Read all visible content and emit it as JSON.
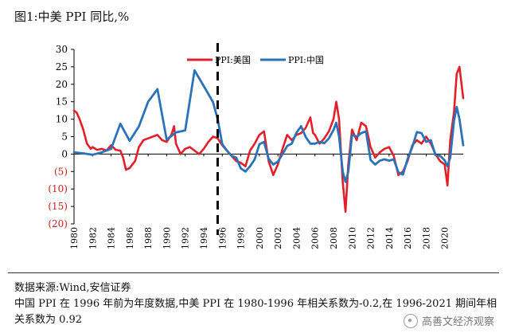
{
  "figure": {
    "title": "图1:中美 PPI 同比,%"
  },
  "source": "数据来源:Wind,安信证券",
  "note": "中国 PPI 在 1996 年前为年度数据,中美 PPI 在 1980-1996 年相关系数为-0.2,在 1996-2021 期间年相关系数为 0.92",
  "watermark": {
    "text": "高善文经济观察",
    "icon": "wechat-channel-icon"
  },
  "colors": {
    "us": "#e3202a",
    "china": "#2b73b8",
    "negative_tick": "#c81e1e",
    "divider": "#000000"
  },
  "chart_data": {
    "type": "line",
    "title": "",
    "xlabel": "",
    "ylabel": "",
    "xlim": [
      1980,
      2022
    ],
    "ylim": [
      -20,
      30
    ],
    "y_ticks": [
      30,
      25,
      20,
      15,
      10,
      5,
      0,
      -5,
      -10,
      -15,
      -20
    ],
    "y_tick_labels": [
      "30",
      "25",
      "20",
      "15",
      "10",
      "5",
      "0",
      "(5)",
      "(10)",
      "(15)",
      "(20)"
    ],
    "x_ticks": [
      1980,
      1982,
      1984,
      1986,
      1988,
      1990,
      1992,
      1994,
      1996,
      1998,
      2000,
      2002,
      2004,
      2006,
      2008,
      2010,
      2012,
      2014,
      2016,
      2018,
      2020
    ],
    "x_tick_labels": [
      "1980",
      "1982",
      "1984",
      "1986",
      "1988",
      "1990",
      "1992",
      "1994",
      "1996",
      "1998",
      "2000",
      "2002",
      "2004",
      "2006",
      "2008",
      "2010",
      "2012",
      "2014",
      "2016",
      "2018",
      "2020"
    ],
    "grid": false,
    "legend": "top-center",
    "divider_year": 1995.5,
    "series": [
      {
        "name": "PPI:美国",
        "color": "#e3202a",
        "x": [
          1980,
          1980.3,
          1980.6,
          1981,
          1981.4,
          1981.8,
          1982,
          1982.5,
          1983,
          1983.5,
          1984,
          1984.5,
          1985,
          1985.3,
          1985.6,
          1986,
          1986.3,
          1986.6,
          1987,
          1987.5,
          1988,
          1988.5,
          1989,
          1989.5,
          1990,
          1990.5,
          1990.8,
          1991,
          1991.5,
          1992,
          1992.5,
          1993,
          1993.5,
          1994,
          1994.5,
          1995,
          1995.5,
          1996,
          1996.5,
          1997,
          1997.5,
          1998,
          1998.5,
          1999,
          1999.5,
          2000,
          2000.5,
          2001,
          2001.5,
          2002,
          2002.5,
          2003,
          2003.5,
          2004,
          2004.5,
          2005,
          2005.5,
          2005.8,
          2006,
          2006.5,
          2007,
          2007.5,
          2008,
          2008.3,
          2008.6,
          2009,
          2009.3,
          2009.6,
          2010,
          2010.5,
          2011,
          2011.5,
          2012,
          2012.5,
          2013,
          2013.5,
          2014,
          2014.5,
          2015,
          2015.5,
          2016,
          2016.5,
          2017,
          2017.5,
          2018,
          2018.5,
          2019,
          2019.5,
          2020,
          2020.3,
          2020.6,
          2021,
          2021.3,
          2021.6,
          2022
        ],
        "y": [
          12.5,
          11.8,
          10,
          7,
          3,
          1.5,
          2,
          1.2,
          1.5,
          1,
          2.5,
          1.2,
          1,
          -1,
          -4.5,
          -4,
          -3,
          -2,
          2,
          4,
          4.5,
          5,
          5.5,
          4,
          3.5,
          5.5,
          8,
          3,
          0,
          1.5,
          2,
          1,
          0,
          1.5,
          3.5,
          5,
          4.5,
          2.5,
          1,
          -0.5,
          -2,
          -2.5,
          -3.5,
          1,
          3,
          5.5,
          6.5,
          -2,
          -6,
          -3,
          1.5,
          5.5,
          4,
          5.5,
          6,
          7.5,
          10.5,
          6,
          5.5,
          3,
          4.5,
          6.5,
          10,
          15,
          10,
          -8,
          -16.5,
          -3,
          7,
          4,
          9,
          8,
          2,
          -1,
          0.5,
          1.5,
          2,
          -0.5,
          -6,
          -5,
          -2,
          2.5,
          4,
          3,
          5,
          3,
          0,
          -2,
          -3,
          -9,
          4,
          12,
          23,
          25,
          16
        ]
      },
      {
        "name": "PPI:中国",
        "color": "#2b73b8",
        "x": [
          1980,
          1981,
          1982,
          1983,
          1984,
          1985,
          1986,
          1987,
          1988,
          1989,
          1990,
          1991,
          1992,
          1993,
          1994,
          1995,
          1995.5,
          1996,
          1996.5,
          1997,
          1997.5,
          1998,
          1998.5,
          1999,
          1999.5,
          2000,
          2000.5,
          2001,
          2001.5,
          2002,
          2002.5,
          2003,
          2003.5,
          2004,
          2004.5,
          2005,
          2005.5,
          2006,
          2006.5,
          2007,
          2007.5,
          2008,
          2008.3,
          2008.6,
          2009,
          2009.3,
          2009.6,
          2010,
          2010.5,
          2011,
          2011.5,
          2012,
          2012.5,
          2013,
          2013.5,
          2014,
          2014.5,
          2015,
          2015.5,
          2016,
          2016.5,
          2017,
          2017.5,
          2018,
          2018.5,
          2019,
          2019.5,
          2020,
          2020.3,
          2020.6,
          2021,
          2021.3,
          2021.6,
          2022
        ],
        "y": [
          0.5,
          0.2,
          -0.2,
          0.5,
          1.5,
          8.7,
          3.8,
          7.9,
          15,
          18.6,
          4.1,
          6.2,
          6.8,
          24,
          19.5,
          14.9,
          10,
          2.8,
          1,
          -0.5,
          -1,
          -4.1,
          -5,
          -3.5,
          -1.5,
          2.8,
          3.5,
          -1.3,
          -3,
          -2.2,
          0,
          2.3,
          3,
          6.1,
          8,
          4.9,
          3,
          3,
          3.5,
          3.1,
          4.5,
          6.9,
          9,
          5,
          -5,
          -8,
          -5,
          5.5,
          5,
          6,
          6.5,
          -1.7,
          -3,
          -1.9,
          -1.5,
          -1.9,
          -1.5,
          -5.2,
          -5.9,
          -1.4,
          2,
          6.3,
          6,
          3.5,
          4,
          -0.3,
          -0.5,
          -1.8,
          -3.5,
          -1,
          9.5,
          13.5,
          10,
          2.5
        ]
      }
    ]
  }
}
